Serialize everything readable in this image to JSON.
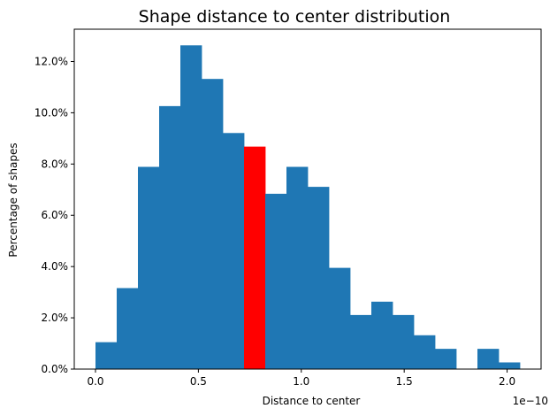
{
  "chart_data": {
    "type": "bar",
    "title": "Shape distance to center distribution",
    "xlabel": "Distance to center",
    "ylabel": "Percentage of shapes",
    "x_offset_label": "1e−10",
    "x_scale": 1e-10,
    "bin_width": 0.1031,
    "bin_starts": [
      0.0,
      0.1031,
      0.2062,
      0.3093,
      0.4124,
      0.5155,
      0.6186,
      0.7217,
      0.8248,
      0.9279,
      1.031,
      1.1341,
      1.2372,
      1.3403,
      1.4434,
      1.5465,
      1.6496,
      1.7527,
      1.8558,
      1.9589
    ],
    "values": [
      1.05,
      3.16,
      7.89,
      10.26,
      12.63,
      11.32,
      9.21,
      8.68,
      6.84,
      7.89,
      7.11,
      3.95,
      2.11,
      2.63,
      2.11,
      1.32,
      0.79,
      0.0,
      0.79,
      0.26
    ],
    "highlight_index": 7,
    "bar_color": "#1f77b4",
    "highlight_color": "#ff0000",
    "xlim": [
      -0.1031,
      2.1651
    ],
    "ylim": [
      0,
      13.26
    ],
    "xticks": [
      0.0,
      0.5,
      1.0,
      1.5,
      2.0
    ],
    "xtick_labels": [
      "0.0",
      "0.5",
      "1.0",
      "1.5",
      "2.0"
    ],
    "yticks": [
      0,
      2,
      4,
      6,
      8,
      10,
      12
    ],
    "ytick_labels": [
      "0.0%",
      "2.0%",
      "4.0%",
      "6.0%",
      "8.0%",
      "10.0%",
      "12.0%"
    ],
    "grid": false,
    "legend": "none"
  }
}
